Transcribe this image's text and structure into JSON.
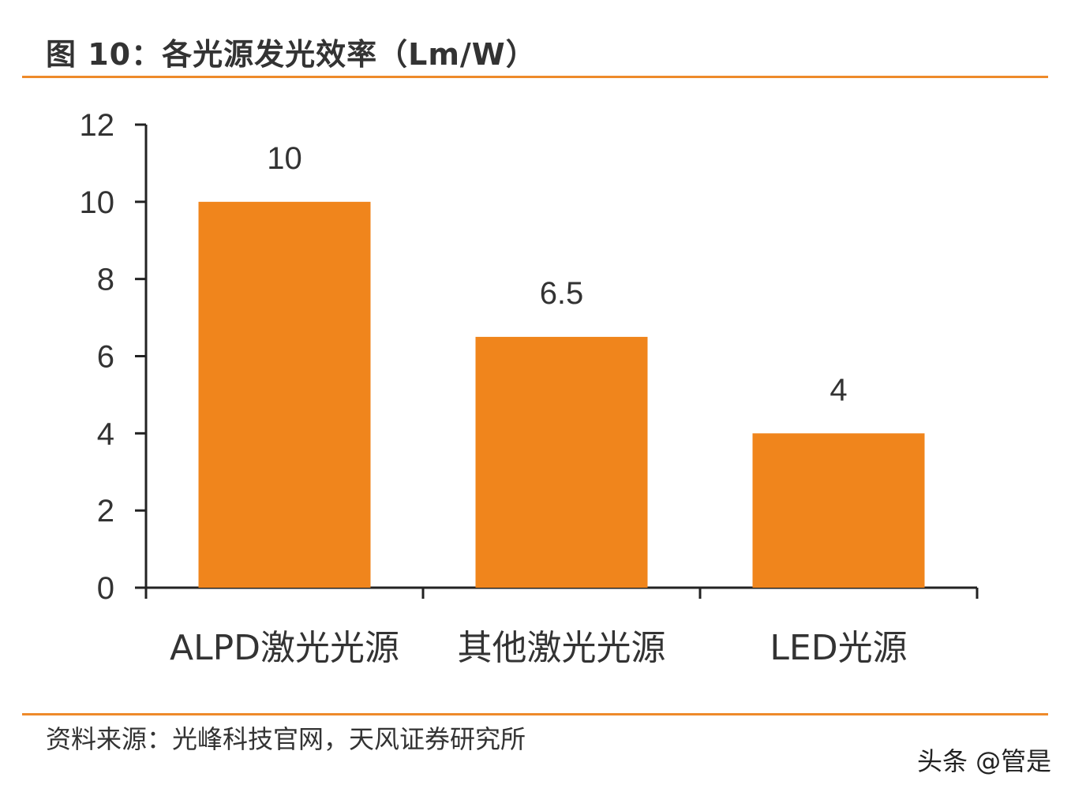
{
  "chart_data": {
    "type": "bar",
    "title": "图 10：各光源发光效率（Lm/W）",
    "categories": [
      "ALPD激光光源",
      "其他激光光源",
      "LED光源"
    ],
    "values": [
      10,
      6.5,
      4
    ],
    "data_labels": [
      "10",
      "6.5",
      "4"
    ],
    "xlabel": "",
    "ylabel": "",
    "ylim": [
      0,
      12
    ],
    "yticks": [
      "0",
      "2",
      "4",
      "6",
      "8",
      "10",
      "12"
    ],
    "grid": false,
    "bar_color": "#F0851C",
    "source": "资料来源：光峰科技官网，天风证券研究所",
    "watermark": "头条 @管是"
  }
}
